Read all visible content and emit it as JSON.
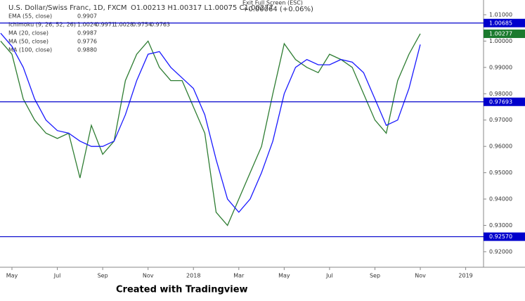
{
  "chart_data": {
    "type": "line",
    "title": "U.S. Dollar/Swiss Franc, 1D, FXCM",
    "quote": "O1.00213 H1.00317 L1.00075 C1.00277",
    "change": "+0.00064 (+0.06%)",
    "exit_button": "Exit Full Screen (ESC)",
    "indicators": [
      {
        "label": "EMA (55, close)",
        "values": [
          "0.9907"
        ]
      },
      {
        "label": "Ichimoku (9, 26, 52, 26)",
        "values": [
          "1.0024",
          "0.9971",
          "1.0028",
          "0.9754",
          "0.9763"
        ]
      },
      {
        "label": "MA (20, close)",
        "values": [
          "0.9987"
        ]
      },
      {
        "label": "MA (50, close)",
        "values": [
          "0.9776"
        ]
      },
      {
        "label": "MA (100, close)",
        "values": [
          "0.9880"
        ]
      }
    ],
    "categories": [
      null,
      "May",
      null,
      null,
      null,
      "Jul",
      null,
      null,
      null,
      "Sep",
      null,
      null,
      null,
      "Nov",
      null,
      null,
      null,
      "2018",
      null,
      null,
      null,
      "Mar",
      null,
      null,
      null,
      "May",
      null,
      null,
      null,
      "Jul",
      null,
      null,
      null,
      "Sep",
      null,
      null,
      null,
      "Nov",
      null,
      null,
      null,
      "2019"
    ],
    "series": [
      {
        "color": "#2e7d32",
        "values": [
          1.0,
          0.995,
          0.978,
          0.97,
          0.965,
          0.963,
          0.965,
          0.948,
          0.968,
          0.957,
          0.962,
          0.985,
          0.995,
          1.0,
          0.99,
          0.985,
          0.985,
          0.975,
          0.965,
          0.935,
          0.93,
          0.94,
          0.95,
          0.96,
          0.98,
          0.999,
          0.993,
          0.99,
          0.988,
          0.995,
          0.993,
          0.99,
          0.98,
          0.97,
          0.965,
          0.985,
          0.995,
          1.0028,
          null,
          null,
          null,
          null
        ]
      },
      {
        "color": "#1a1aff",
        "values": [
          1.003,
          0.998,
          0.99,
          0.978,
          0.97,
          0.966,
          0.965,
          0.962,
          0.96,
          0.96,
          0.962,
          0.972,
          0.985,
          0.995,
          0.996,
          0.99,
          0.986,
          0.982,
          0.972,
          0.955,
          0.94,
          0.935,
          0.94,
          0.95,
          0.962,
          0.98,
          0.99,
          0.993,
          0.991,
          0.991,
          0.993,
          0.992,
          0.988,
          0.978,
          0.968,
          0.97,
          0.982,
          0.9987,
          null,
          null,
          null,
          null
        ]
      }
    ],
    "ylim": [
      0.9141,
      1.0156
    ],
    "yticks": [
      {
        "value": 0.92,
        "label": "0.92000"
      },
      {
        "value": 0.93,
        "label": "0.93000"
      },
      {
        "value": 0.94,
        "label": "0.94000"
      },
      {
        "value": 0.95,
        "label": "0.95000"
      },
      {
        "value": 0.96,
        "label": "0.96000"
      },
      {
        "value": 0.97,
        "label": "0.97000"
      },
      {
        "value": 0.98,
        "label": "0.98000"
      },
      {
        "value": 0.99,
        "label": "0.99000"
      },
      {
        "value": 1.0,
        "label": "1.00000"
      },
      {
        "value": 1.01,
        "label": "1.01000"
      }
    ],
    "levels": [
      1.00685,
      0.97693,
      {
        "value": 0.9257,
        "label": "0.92570"
      }
    ],
    "level_color": "#0000cc",
    "last_price": 1.00277,
    "last_price_color": "#1b7a2e",
    "footer": "Created with Tradingview"
  }
}
